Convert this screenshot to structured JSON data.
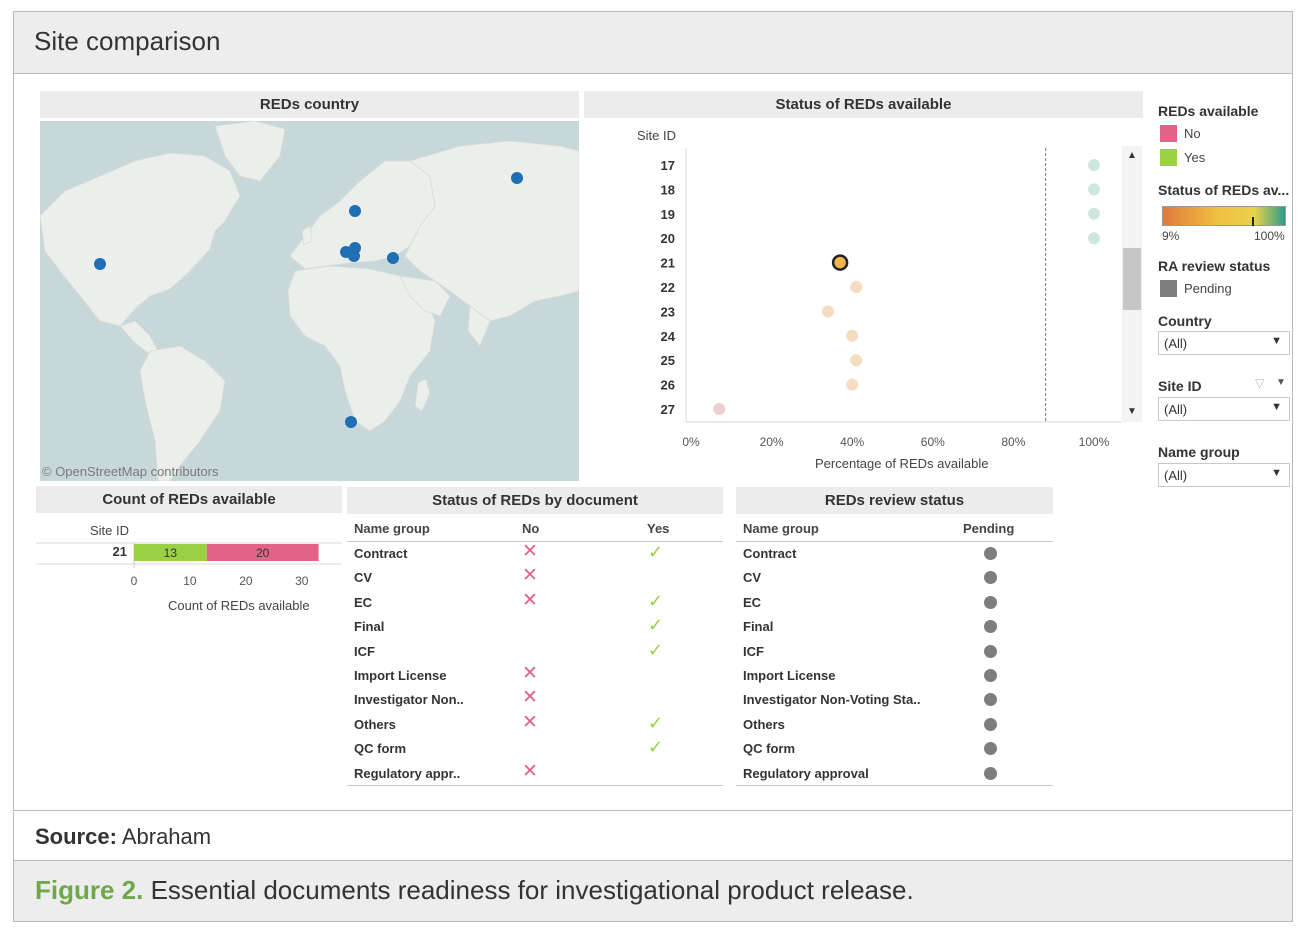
{
  "title": "Site comparison",
  "source_label": "Source:",
  "source_value": "Abraham",
  "figure_label": "Figure 2.",
  "figure_caption": "Essential documents readiness for investigational product release.",
  "map_panel": {
    "title": "REDs country",
    "credit": "© OpenStreetMap contributors",
    "point_color": "#1f6fb4"
  },
  "legend": {
    "reds_available_title": "REDs available",
    "reds_available_items": [
      {
        "label": "No",
        "color": "#e36388"
      },
      {
        "label": "Yes",
        "color": "#9ad044"
      }
    ],
    "status_title": "Status of REDs av...",
    "status_min": "9%",
    "status_max": "100%",
    "status_colors": [
      "#e07a3c",
      "#f0c040",
      "#e8d24a",
      "#2b9b8b"
    ],
    "ra_title": "RA review status",
    "ra_items": [
      {
        "label": "Pending",
        "color": "#7d7d7d"
      }
    ]
  },
  "filters": [
    {
      "label": "Country",
      "value": "(All)"
    },
    {
      "label": "Site ID",
      "value": "(All)"
    },
    {
      "label": "Name group",
      "value": "(All)"
    }
  ],
  "chart_data": [
    {
      "type": "scatter",
      "title": "Status of REDs available",
      "ylabel": "Site ID",
      "xlabel": "Percentage of REDs available",
      "xlim": [
        0,
        100
      ],
      "x_ticks": [
        "0%",
        "20%",
        "40%",
        "60%",
        "80%",
        "100%"
      ],
      "reference_line_x": 88,
      "points": [
        {
          "site": "17",
          "x": 100,
          "color": "#cfe6de"
        },
        {
          "site": "18",
          "x": 100,
          "color": "#cfe6de"
        },
        {
          "site": "19",
          "x": 100,
          "color": "#cfe6de"
        },
        {
          "site": "20",
          "x": 100,
          "color": "#cfe6de"
        },
        {
          "site": "21",
          "x": 37,
          "color": "#f0b44a",
          "selected": true
        },
        {
          "site": "22",
          "x": 41,
          "color": "#f5dcc0"
        },
        {
          "site": "23",
          "x": 34,
          "color": "#f5dcc0"
        },
        {
          "site": "24",
          "x": 40,
          "color": "#f5dcc0"
        },
        {
          "site": "25",
          "x": 41,
          "color": "#f5dcc0"
        },
        {
          "site": "26",
          "x": 40,
          "color": "#f5dcc0"
        },
        {
          "site": "27",
          "x": 7,
          "color": "#ecd0d0"
        }
      ]
    },
    {
      "type": "bar",
      "title": "Count of REDs available",
      "ylabel": "Site ID",
      "xlabel": "Count of REDs available",
      "xlim": [
        0,
        32
      ],
      "x_ticks": [
        "0",
        "10",
        "20",
        "30"
      ],
      "categories": [
        "21"
      ],
      "series": [
        {
          "name": "Yes",
          "values": [
            13
          ],
          "color": "#9ad044"
        },
        {
          "name": "No",
          "values": [
            20
          ],
          "color": "#e36388"
        }
      ],
      "stacked": true
    },
    {
      "type": "table",
      "title": "Status of REDs by document",
      "columns": [
        "Name group",
        "No",
        "Yes"
      ],
      "rows": [
        {
          "name": "Contract",
          "no": true,
          "yes": true
        },
        {
          "name": "CV",
          "no": true,
          "yes": false
        },
        {
          "name": "EC",
          "no": true,
          "yes": true
        },
        {
          "name": "Final",
          "no": false,
          "yes": true
        },
        {
          "name": "ICF",
          "no": false,
          "yes": true
        },
        {
          "name": "Import License",
          "no": true,
          "yes": false
        },
        {
          "name": "Investigator Non..",
          "no": true,
          "yes": false
        },
        {
          "name": "Others",
          "no": true,
          "yes": true
        },
        {
          "name": "QC form",
          "no": false,
          "yes": true
        },
        {
          "name": "Regulatory appr..",
          "no": true,
          "yes": false
        }
      ]
    },
    {
      "type": "table",
      "title": "REDs review status",
      "columns": [
        "Name group",
        "Pending"
      ],
      "rows": [
        {
          "name": "Contract",
          "pending": true
        },
        {
          "name": "CV",
          "pending": true
        },
        {
          "name": "EC",
          "pending": true
        },
        {
          "name": "Final",
          "pending": true
        },
        {
          "name": "ICF",
          "pending": true
        },
        {
          "name": "Import License",
          "pending": true
        },
        {
          "name": "Investigator Non-Voting Sta..",
          "pending": true
        },
        {
          "name": "Others",
          "pending": true
        },
        {
          "name": "QC form",
          "pending": true
        },
        {
          "name": "Regulatory approval",
          "pending": true
        }
      ]
    }
  ]
}
